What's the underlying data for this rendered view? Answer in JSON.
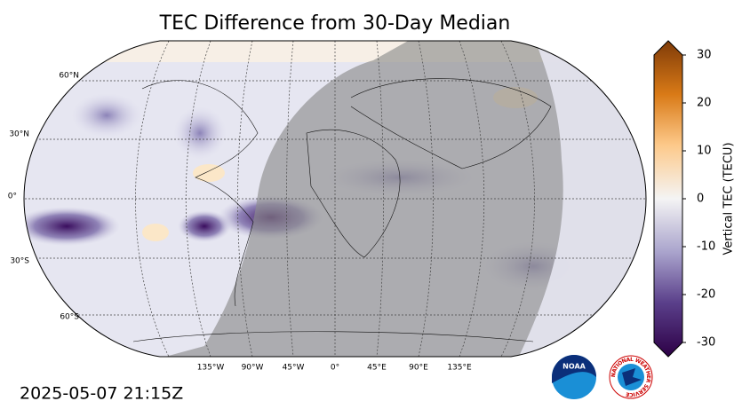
{
  "map": {
    "title": "TEC Difference from 30-Day Median",
    "lat_labels": [
      "60°N",
      "30°N",
      "0°",
      "30°S",
      "60°S"
    ],
    "lon_labels": [
      "135°W",
      "90°W",
      "45°W",
      "0°",
      "45°E",
      "90°E",
      "135°E"
    ],
    "colorbar": {
      "label": "Vertical TEC (TECU)",
      "lim": [
        -30,
        30
      ],
      "ticks": [
        30,
        20,
        10,
        0,
        -10,
        -20,
        -30
      ]
    },
    "timestamp": "2025-05-07 21:15Z",
    "logos": {
      "noaa": "NOAA",
      "nws": "NATIONAL WEATHER SERVICE"
    }
  }
}
